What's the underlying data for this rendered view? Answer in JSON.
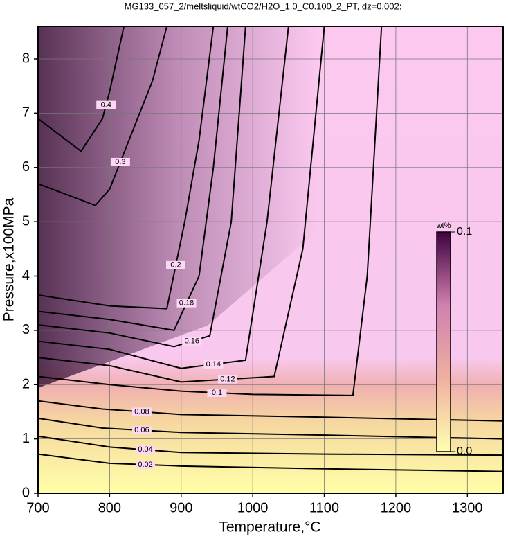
{
  "chart_data": {
    "type": "contour",
    "title": "MG133_057_2/meltsliquid/wtCO2/H2O_1.0_C0.100_2_PT, dz=0.002:",
    "x_label": "Temperature,°C",
    "y_label": "Pressure,x100MPa",
    "xlim": [
      700,
      1350
    ],
    "ylim": [
      0,
      8.6
    ],
    "xticks": [
      700,
      800,
      900,
      1000,
      1100,
      1200,
      1300
    ],
    "yticks": [
      0,
      1,
      2,
      3,
      4,
      5,
      6,
      7,
      8
    ],
    "grid": true,
    "line_color": "#000000",
    "contours": [
      {
        "level": 0.02,
        "x": [
          700,
          800,
          900,
          1100,
          1350
        ],
        "y": [
          0.72,
          0.55,
          0.5,
          0.45,
          0.4
        ]
      },
      {
        "level": 0.04,
        "x": [
          700,
          800,
          900,
          1100,
          1350
        ],
        "y": [
          1.05,
          0.85,
          0.75,
          0.72,
          0.7
        ]
      },
      {
        "level": 0.06,
        "x": [
          700,
          790,
          900,
          1100,
          1350
        ],
        "y": [
          1.38,
          1.2,
          1.12,
          1.07,
          1.0
        ]
      },
      {
        "level": 0.08,
        "x": [
          700,
          790,
          900,
          1100,
          1350
        ],
        "y": [
          1.7,
          1.55,
          1.45,
          1.4,
          1.33
        ]
      },
      {
        "level": 0.1,
        "x": [
          700,
          800,
          900,
          1000,
          1140,
          1160,
          1180
        ],
        "y": [
          2.15,
          2.0,
          1.88,
          1.82,
          1.8,
          4.0,
          8.6
        ]
      },
      {
        "level": 0.12,
        "x": [
          700,
          800,
          900,
          1030,
          1070,
          1100
        ],
        "y": [
          2.5,
          2.35,
          2.05,
          2.15,
          4.5,
          8.6
        ]
      },
      {
        "level": 0.14,
        "x": [
          700,
          800,
          900,
          990,
          1020,
          1050
        ],
        "y": [
          2.8,
          2.65,
          2.3,
          2.45,
          5.0,
          8.6
        ]
      },
      {
        "level": 0.16,
        "x": [
          700,
          800,
          890,
          940,
          970,
          990
        ],
        "y": [
          3.1,
          2.95,
          2.7,
          2.9,
          5.0,
          8.6
        ]
      },
      {
        "level": 0.18,
        "x": [
          700,
          800,
          890,
          925,
          945,
          965
        ],
        "y": [
          3.35,
          3.2,
          3.0,
          4.0,
          6.0,
          8.6
        ]
      },
      {
        "level": 0.2,
        "x": [
          700,
          800,
          880,
          905,
          925,
          945
        ],
        "y": [
          3.65,
          3.45,
          3.4,
          5.0,
          6.5,
          8.6
        ]
      },
      {
        "level": 0.3,
        "x": [
          700,
          780,
          800,
          830,
          860,
          880
        ],
        "y": [
          5.7,
          5.3,
          5.6,
          6.6,
          7.6,
          8.6
        ]
      },
      {
        "level": 0.4,
        "x": [
          700,
          760,
          790,
          800,
          810,
          820
        ],
        "y": [
          6.9,
          6.3,
          6.9,
          7.4,
          8.0,
          8.6
        ]
      }
    ],
    "colorbar": {
      "label": "wt%",
      "range": [
        0,
        0.1
      ],
      "ticks": [
        {
          "value": 0,
          "label": "0.0"
        },
        0.1
      ],
      "colors": [
        "#ffffb0",
        "#f0b0a0",
        "#d080b0",
        "#400040"
      ]
    }
  }
}
